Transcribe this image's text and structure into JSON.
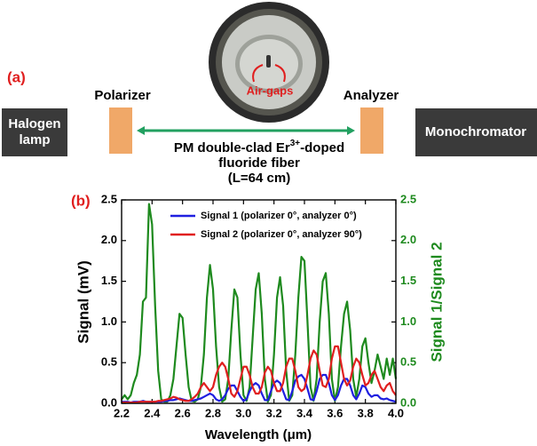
{
  "diagram": {
    "label": "(a)",
    "source_lines": [
      "Halogen",
      "lamp"
    ],
    "polarizer": "Polarizer",
    "analyzer": "Analyzer",
    "detector": "Monochromator",
    "air_gaps": "Air-gaps",
    "fiber_line_1": [
      "PM double-clad Er",
      "3+",
      "-doped"
    ],
    "fiber_line_2": "fluoride fiber",
    "fiber_line_3": "(L=64 cm)"
  },
  "chart_data": {
    "type": "line",
    "panel_label": "(b)",
    "x_label": "Wavelength (μm)",
    "y_label": "Signal (mV)",
    "y2_label": "Signal 1/Signal 2",
    "legend": "upper left",
    "x": [
      2.2,
      2.22,
      2.24,
      2.26,
      2.28,
      2.3,
      2.32,
      2.34,
      2.36,
      2.38,
      2.4,
      2.42,
      2.44,
      2.46,
      2.48,
      2.5,
      2.52,
      2.54,
      2.56,
      2.58,
      2.6,
      2.62,
      2.64,
      2.66,
      2.68,
      2.7,
      2.72,
      2.74,
      2.76,
      2.78,
      2.8,
      2.82,
      2.84,
      2.86,
      2.88,
      2.9,
      2.92,
      2.94,
      2.96,
      2.98,
      3.0,
      3.02,
      3.04,
      3.06,
      3.08,
      3.1,
      3.12,
      3.14,
      3.16,
      3.18,
      3.2,
      3.22,
      3.24,
      3.26,
      3.28,
      3.3,
      3.32,
      3.34,
      3.36,
      3.38,
      3.4,
      3.42,
      3.44,
      3.46,
      3.48,
      3.5,
      3.52,
      3.54,
      3.56,
      3.58,
      3.6,
      3.62,
      3.64,
      3.66,
      3.68,
      3.7,
      3.72,
      3.74,
      3.76,
      3.78,
      3.8,
      3.82,
      3.84,
      3.86,
      3.88,
      3.9,
      3.92,
      3.94,
      3.96,
      3.98,
      4.0
    ],
    "series": [
      {
        "name": "Signal 1 (polarizer 0°, analyzer 0°)",
        "color": "#1f1fe0",
        "values": [
          0.02,
          0.02,
          0.02,
          0.01,
          0.02,
          0.02,
          0.02,
          0.03,
          0.02,
          0.02,
          0.02,
          0.02,
          0.02,
          0.02,
          0.03,
          0.03,
          0.04,
          0.04,
          0.05,
          0.06,
          0.05,
          0.04,
          0.03,
          0.03,
          0.04,
          0.05,
          0.06,
          0.08,
          0.1,
          0.12,
          0.1,
          0.05,
          0.03,
          0.05,
          0.1,
          0.18,
          0.22,
          0.22,
          0.15,
          0.08,
          0.03,
          0.05,
          0.15,
          0.22,
          0.25,
          0.22,
          0.12,
          0.04,
          0.04,
          0.15,
          0.25,
          0.28,
          0.25,
          0.15,
          0.05,
          0.04,
          0.15,
          0.28,
          0.33,
          0.35,
          0.3,
          0.18,
          0.05,
          0.04,
          0.15,
          0.3,
          0.35,
          0.35,
          0.25,
          0.1,
          0.04,
          0.1,
          0.22,
          0.3,
          0.3,
          0.22,
          0.1,
          0.05,
          0.12,
          0.22,
          0.2,
          0.12,
          0.08,
          0.1,
          0.1,
          0.06,
          0.05,
          0.06,
          0.04,
          0.03,
          0.02
        ]
      },
      {
        "name": "Signal 2 (polarizer 0°, analyzer 90°)",
        "color": "#e01f1f",
        "values": [
          0.01,
          0.01,
          0.01,
          0.01,
          0.01,
          0.01,
          0.02,
          0.02,
          0.02,
          0.02,
          0.02,
          0.02,
          0.03,
          0.03,
          0.04,
          0.05,
          0.06,
          0.08,
          0.07,
          0.05,
          0.04,
          0.03,
          0.03,
          0.05,
          0.08,
          0.12,
          0.2,
          0.25,
          0.2,
          0.15,
          0.2,
          0.35,
          0.45,
          0.5,
          0.45,
          0.3,
          0.12,
          0.08,
          0.15,
          0.3,
          0.45,
          0.45,
          0.35,
          0.2,
          0.12,
          0.12,
          0.2,
          0.38,
          0.45,
          0.4,
          0.25,
          0.15,
          0.15,
          0.25,
          0.45,
          0.55,
          0.55,
          0.4,
          0.2,
          0.15,
          0.18,
          0.35,
          0.55,
          0.65,
          0.6,
          0.4,
          0.22,
          0.2,
          0.3,
          0.55,
          0.7,
          0.7,
          0.5,
          0.3,
          0.22,
          0.28,
          0.45,
          0.55,
          0.5,
          0.35,
          0.22,
          0.25,
          0.35,
          0.4,
          0.3,
          0.2,
          0.15,
          0.22,
          0.25,
          0.15,
          0.1
        ]
      },
      {
        "color": "#1e8a1e",
        "axis": "y2",
        "values": [
          0.05,
          0.1,
          0.05,
          0.1,
          0.25,
          0.35,
          0.6,
          1.25,
          1.3,
          2.45,
          2.2,
          1.2,
          0.4,
          0.05,
          0.02,
          0.02,
          0.1,
          0.3,
          0.7,
          1.1,
          1.05,
          0.6,
          0.2,
          0.03,
          0.02,
          0.05,
          0.2,
          0.6,
          1.3,
          1.7,
          1.4,
          0.7,
          0.2,
          0.02,
          0.05,
          0.3,
          0.9,
          1.4,
          1.3,
          0.6,
          0.1,
          0.03,
          0.2,
          0.8,
          1.4,
          1.6,
          1.1,
          0.3,
          0.02,
          0.1,
          0.6,
          1.3,
          1.55,
          1.2,
          0.4,
          0.03,
          0.1,
          0.6,
          1.3,
          1.8,
          1.75,
          1.0,
          0.2,
          0.03,
          0.3,
          1.0,
          1.5,
          1.6,
          1.1,
          0.3,
          0.03,
          0.2,
          0.7,
          1.1,
          1.25,
          0.9,
          0.3,
          0.08,
          0.3,
          0.7,
          0.8,
          0.5,
          0.25,
          0.4,
          0.6,
          0.45,
          0.3,
          0.55,
          0.35,
          0.55,
          0.3
        ]
      }
    ],
    "xlim": [
      2.2,
      4.0
    ],
    "xticks": [
      2.2,
      2.4,
      2.6,
      2.8,
      {
        "value": 3.0,
        "label": "3.0"
      },
      3.2,
      3.4,
      3.6,
      3.8,
      {
        "value": 4.0,
        "label": "4.0"
      }
    ],
    "ylim": [
      0,
      2.5
    ],
    "yticks": [
      {
        "value": 0,
        "label": "0.0"
      },
      0.5,
      {
        "value": 1,
        "label": "1.0"
      },
      1.5,
      {
        "value": 2,
        "label": "2.0"
      },
      2.5
    ],
    "y2lim": [
      0,
      2.5
    ],
    "y2ticks": [
      {
        "value": 0,
        "label": "0.0"
      },
      0.5,
      {
        "value": 1,
        "label": "1.0"
      },
      1.5,
      {
        "value": 2,
        "label": "2.0"
      },
      2.5
    ],
    "y2_color": "#1e8a1e"
  }
}
